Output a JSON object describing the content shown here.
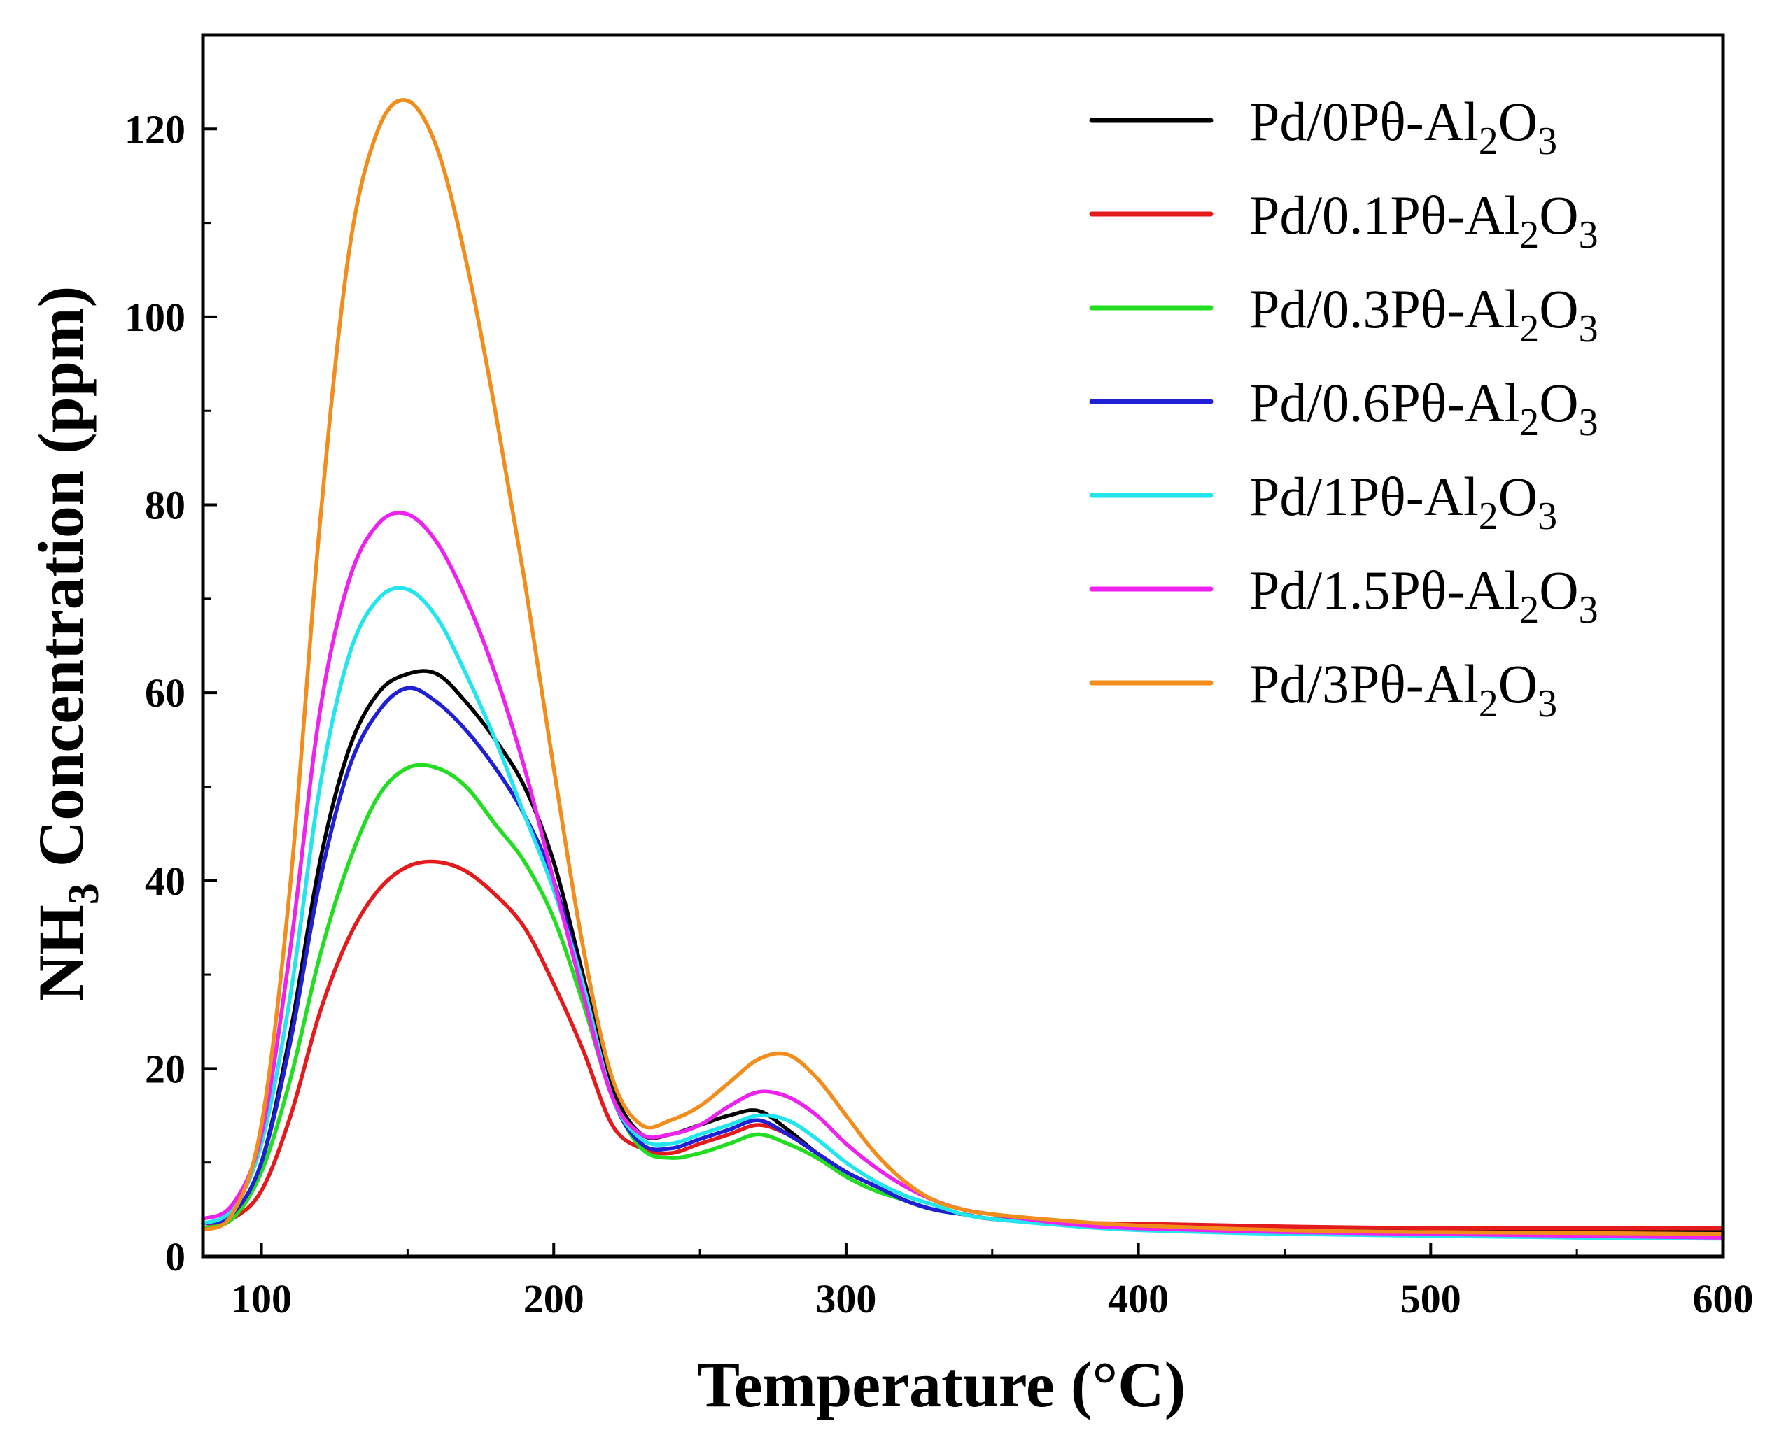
{
  "chart_data": {
    "type": "line",
    "title": "",
    "xlabel": "Temperature (°C)",
    "ylabel": {
      "prefix": "NH",
      "subscript": "3",
      "suffix": " Concentration (ppm)"
    },
    "xlim": [
      80,
      600
    ],
    "ylim": [
      0,
      130
    ],
    "xticks": [
      100,
      200,
      300,
      400,
      500,
      600
    ],
    "yticks": [
      0,
      20,
      40,
      60,
      80,
      100,
      120
    ],
    "xtick_labels": [
      "100",
      "200",
      "300",
      "400",
      "500",
      "600"
    ],
    "ytick_labels": [
      "0",
      "20",
      "40",
      "60",
      "80",
      "100",
      "120"
    ],
    "legend_position": "top-right",
    "grid": false,
    "x": [
      80,
      90,
      100,
      110,
      120,
      130,
      140,
      150,
      160,
      170,
      180,
      190,
      200,
      210,
      220,
      230,
      240,
      250,
      260,
      270,
      280,
      290,
      300,
      310,
      320,
      330,
      340,
      350,
      375,
      400,
      450,
      500,
      550,
      600
    ],
    "series": [
      {
        "name": "Pd/0Pθ-Al2O3",
        "label_parts": [
          "Pd/0Pθ-Al",
          "2",
          "O",
          "3"
        ],
        "color": "#000000",
        "values": [
          3.5,
          4.5,
          10,
          24,
          42,
          54,
          60,
          62,
          62,
          59,
          55,
          50,
          42,
          30,
          18,
          13,
          13,
          14,
          15,
          15.5,
          13.5,
          11,
          9,
          7.5,
          6,
          5,
          4.5,
          4,
          3.5,
          3,
          2.8,
          2.7,
          2.7,
          2.6
        ]
      },
      {
        "name": "Pd/0.1Pθ-Al2O3",
        "label_parts": [
          "Pd/0.1Pθ-Al",
          "2",
          "O",
          "3"
        ],
        "color": "#e41a1c",
        "values": [
          3.0,
          4.0,
          7,
          15,
          26,
          34,
          39,
          41.5,
          42,
          41,
          38.5,
          35,
          29,
          22,
          14,
          11.5,
          11,
          12,
          13,
          14,
          13,
          11,
          9,
          7.5,
          6,
          5,
          4.5,
          4,
          3.6,
          3.5,
          3.2,
          3,
          3,
          3
        ]
      },
      {
        "name": "Pd/0.3Pθ-Al2O3",
        "label_parts": [
          "Pd/0.3Pθ-Al",
          "2",
          "O",
          "3"
        ],
        "color": "#22dd22",
        "values": [
          3.0,
          4.0,
          9,
          19,
          32,
          42,
          49,
          52,
          52,
          50,
          46,
          42,
          36,
          27,
          17,
          11.5,
          10.5,
          11,
          12,
          13,
          12,
          10.5,
          8.5,
          7,
          6,
          5,
          4.5,
          4,
          3.4,
          3,
          2.5,
          2.3,
          2.2,
          2
        ]
      },
      {
        "name": "Pd/0.6Pθ-Al2O3",
        "label_parts": [
          "Pd/0.6Pθ-Al",
          "2",
          "O",
          "3"
        ],
        "color": "#1f1fd6",
        "values": [
          3.5,
          4.5,
          10,
          23,
          40,
          52,
          58,
          60.5,
          59,
          56,
          52,
          47,
          40,
          29,
          17,
          12,
          11.5,
          12.5,
          13.5,
          14.5,
          13,
          11,
          9,
          7.5,
          6,
          5,
          4.5,
          4,
          3.4,
          3,
          2.6,
          2.4,
          2.3,
          2.2
        ]
      },
      {
        "name": "Pd/1Pθ-Al2O3",
        "label_parts": [
          "Pd/1Pθ-Al",
          "2",
          "O",
          "3"
        ],
        "color": "#22e5ee",
        "values": [
          3.5,
          5,
          12,
          28,
          50,
          64,
          70,
          71,
          68,
          62,
          55,
          47,
          39,
          29,
          17,
          12.5,
          12,
          13,
          14,
          15,
          14.5,
          12.5,
          10,
          8,
          6.5,
          5.5,
          4.5,
          4,
          3.3,
          2.8,
          2.4,
          2.2,
          2,
          1.9
        ]
      },
      {
        "name": "Pd/1.5Pθ-Al2O3",
        "label_parts": [
          "Pd/1.5Pθ-Al",
          "2",
          "O",
          "3"
        ],
        "color": "#ee22ee",
        "values": [
          4.0,
          5.5,
          13,
          33,
          58,
          72,
          78,
          79,
          76,
          70,
          62,
          52,
          40,
          28,
          17,
          13,
          13,
          14,
          16,
          17.5,
          17,
          15,
          12,
          9.5,
          7.5,
          6,
          5,
          4.5,
          3.5,
          3,
          2.6,
          2.4,
          2.2,
          2
        ]
      },
      {
        "name": "Pd/3Pθ-Al2O3",
        "label_parts": [
          "Pd/3Pθ-Al",
          "2",
          "O",
          "3"
        ],
        "color": "#f28c1a",
        "values": [
          2.8,
          4.5,
          14,
          40,
          78,
          107,
          120,
          123,
          118,
          106,
          90,
          72,
          52,
          33,
          19,
          14,
          14.5,
          16,
          18.5,
          21,
          21.5,
          19,
          15,
          11,
          8,
          6,
          5,
          4.5,
          3.8,
          3.3,
          2.8,
          2.6,
          2.5,
          2.4
        ]
      }
    ]
  }
}
